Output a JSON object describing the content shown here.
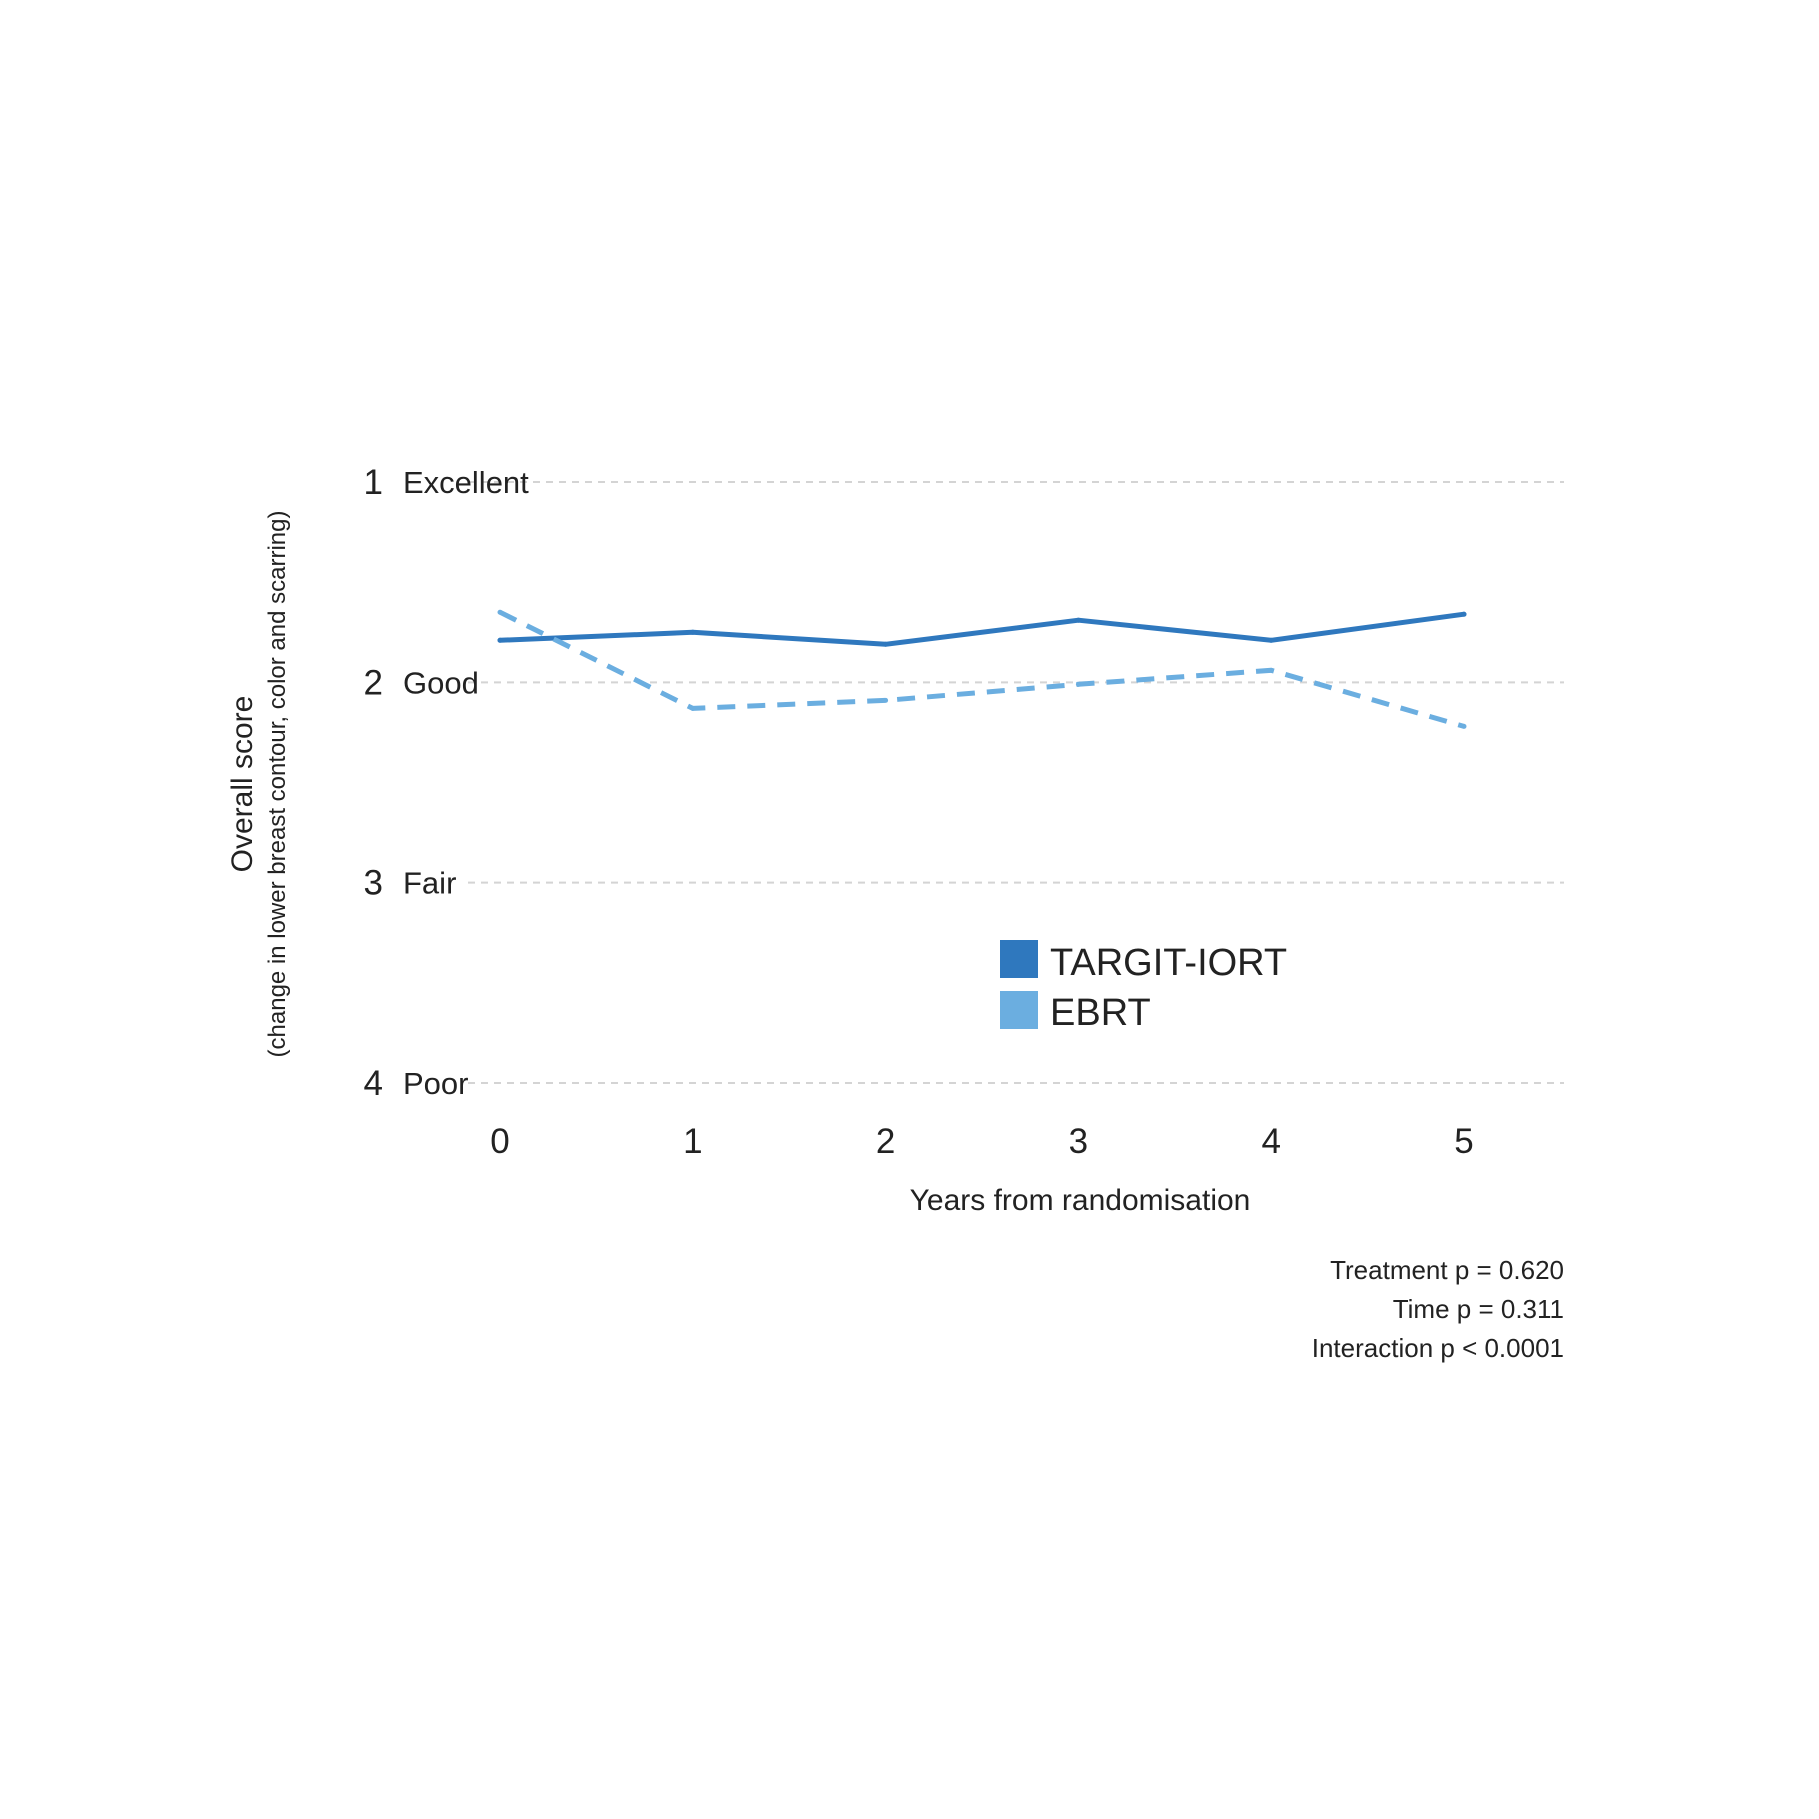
{
  "chart_data": {
    "type": "line",
    "x": [
      0,
      1,
      2,
      3,
      4,
      5
    ],
    "xlabel": "Years from randomisation",
    "ylabel": "Overall score",
    "ylabel_sub": "(change in lower breast contour, color and scarring)",
    "ylim": [
      1,
      4
    ],
    "y_inverted": true,
    "y_ticks": [
      {
        "value": 1,
        "num": "1",
        "label": "Excellent"
      },
      {
        "value": 2,
        "num": "2",
        "label": "Good"
      },
      {
        "value": 3,
        "num": "3",
        "label": "Fair"
      },
      {
        "value": 4,
        "num": "4",
        "label": "Poor"
      }
    ],
    "x_ticks": [
      "0",
      "1",
      "2",
      "3",
      "4",
      "5"
    ],
    "grid": "horizontal dashed",
    "legend_position": "center-right",
    "series": [
      {
        "name": "TARGIT-IORT",
        "values": [
          1.79,
          1.75,
          1.81,
          1.69,
          1.79,
          1.66
        ],
        "color": "#2f78be",
        "style": "solid"
      },
      {
        "name": "EBRT",
        "values": [
          1.65,
          2.13,
          2.09,
          2.01,
          1.94,
          2.22
        ],
        "color": "#6baee0",
        "style": "dashed"
      }
    ],
    "annotations": [
      "Treatment p = 0.620",
      "Time p = 0.311",
      "Interaction p < 0.0001"
    ]
  }
}
